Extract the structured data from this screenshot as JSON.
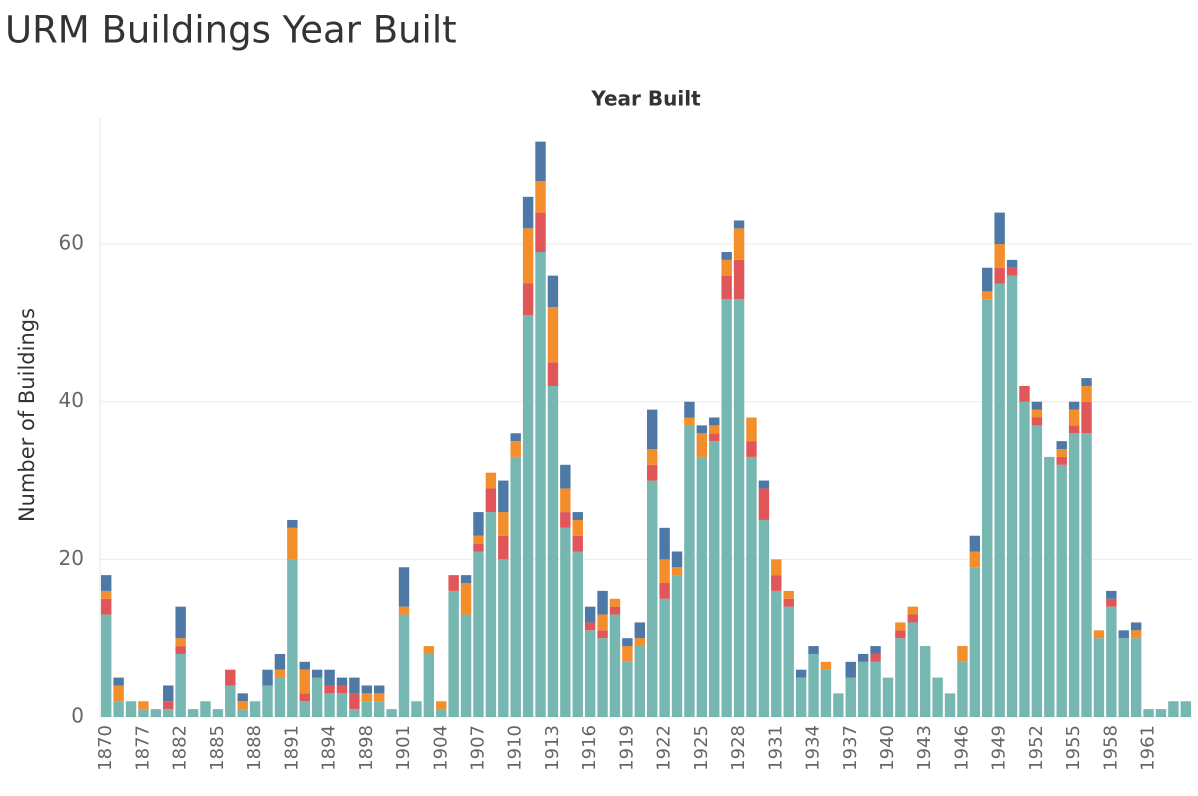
{
  "chart_data": {
    "type": "stacked-bar",
    "title": "URM Buildings Year Built",
    "x_label": "Year Built",
    "y_label": "Number of Buildings",
    "categories": [
      "1870",
      null,
      null,
      "1877",
      null,
      null,
      "1882",
      null,
      null,
      "1885",
      null,
      null,
      "1888",
      null,
      null,
      "1891",
      null,
      null,
      "1894",
      null,
      null,
      "1898",
      null,
      null,
      "1901",
      null,
      null,
      "1904",
      null,
      null,
      "1907",
      null,
      null,
      "1910",
      null,
      null,
      "1913",
      null,
      null,
      "1916",
      null,
      null,
      "1919",
      null,
      null,
      "1922",
      null,
      null,
      "1925",
      null,
      null,
      "1928",
      null,
      null,
      "1931",
      null,
      null,
      "1934",
      null,
      null,
      "1937",
      null,
      null,
      "1940",
      null,
      null,
      "1943",
      null,
      null,
      "1946",
      null,
      null,
      "1949",
      null,
      null,
      "1952",
      null,
      null,
      "1955",
      null,
      null,
      "1958",
      null,
      null,
      "1961",
      null,
      null,
      null
    ],
    "series": [
      {
        "color": "#76b7b2",
        "values": [
          13,
          2,
          2,
          1,
          1,
          1,
          8,
          1,
          2,
          1,
          4,
          1,
          2,
          4,
          5,
          20,
          2,
          5,
          3,
          3,
          1,
          2,
          2,
          1,
          13,
          2,
          8,
          1,
          16,
          13,
          21,
          26,
          20,
          33,
          51,
          59,
          42,
          24,
          21,
          11,
          10,
          13,
          7,
          9,
          30,
          15,
          18,
          37,
          33,
          35,
          53,
          53,
          33,
          25,
          16,
          14,
          5,
          8,
          6,
          3,
          5,
          7,
          7,
          5,
          10,
          12,
          9,
          5,
          3,
          7,
          19,
          53,
          55,
          56,
          40,
          37,
          33,
          32,
          36,
          36,
          10,
          14,
          10,
          10,
          1,
          1,
          2,
          2
        ]
      },
      {
        "color": "#e15759",
        "values": [
          2,
          0,
          0,
          0,
          0,
          1,
          1,
          0,
          0,
          0,
          2,
          0,
          0,
          0,
          0,
          0,
          1,
          0,
          1,
          1,
          2,
          0,
          0,
          0,
          0,
          0,
          0,
          0,
          2,
          0,
          1,
          3,
          3,
          0,
          4,
          5,
          3,
          2,
          2,
          1,
          1,
          1,
          0,
          0,
          2,
          2,
          0,
          0,
          0,
          1,
          3,
          5,
          2,
          4,
          2,
          1,
          0,
          0,
          0,
          0,
          0,
          0,
          1,
          0,
          1,
          1,
          0,
          0,
          0,
          0,
          0,
          0,
          2,
          1,
          2,
          1,
          0,
          1,
          1,
          4,
          0,
          1,
          0,
          0,
          0,
          0,
          0,
          0
        ]
      },
      {
        "color": "#f28e2b",
        "values": [
          1,
          2,
          0,
          1,
          0,
          0,
          1,
          0,
          0,
          0,
          0,
          1,
          0,
          0,
          1,
          4,
          3,
          0,
          0,
          0,
          0,
          1,
          1,
          0,
          1,
          0,
          1,
          1,
          0,
          4,
          1,
          2,
          3,
          2,
          7,
          4,
          7,
          3,
          2,
          0,
          2,
          1,
          2,
          1,
          2,
          3,
          1,
          1,
          3,
          1,
          2,
          4,
          3,
          0,
          2,
          1,
          0,
          0,
          1,
          0,
          0,
          0,
          0,
          0,
          1,
          1,
          0,
          0,
          0,
          2,
          2,
          1,
          3,
          0,
          0,
          1,
          0,
          1,
          2,
          2,
          1,
          0,
          0,
          1,
          0,
          0,
          0,
          0
        ]
      },
      {
        "color": "#4e79a7",
        "values": [
          2,
          1,
          0,
          0,
          0,
          2,
          4,
          0,
          0,
          0,
          0,
          1,
          0,
          2,
          2,
          1,
          1,
          1,
          2,
          1,
          2,
          1,
          1,
          0,
          5,
          0,
          0,
          0,
          0,
          1,
          3,
          0,
          4,
          1,
          4,
          5,
          4,
          3,
          1,
          2,
          3,
          0,
          1,
          2,
          5,
          4,
          2,
          2,
          1,
          1,
          1,
          1,
          0,
          1,
          0,
          0,
          1,
          1,
          0,
          0,
          2,
          1,
          1,
          0,
          0,
          0,
          0,
          0,
          0,
          0,
          2,
          3,
          4,
          1,
          0,
          1,
          0,
          1,
          1,
          1,
          0,
          1,
          1,
          1,
          0,
          0,
          0,
          0
        ]
      }
    ],
    "ylim": [
      0,
      76
    ],
    "yticks": [
      0,
      20,
      40,
      60
    ],
    "grid": true
  }
}
